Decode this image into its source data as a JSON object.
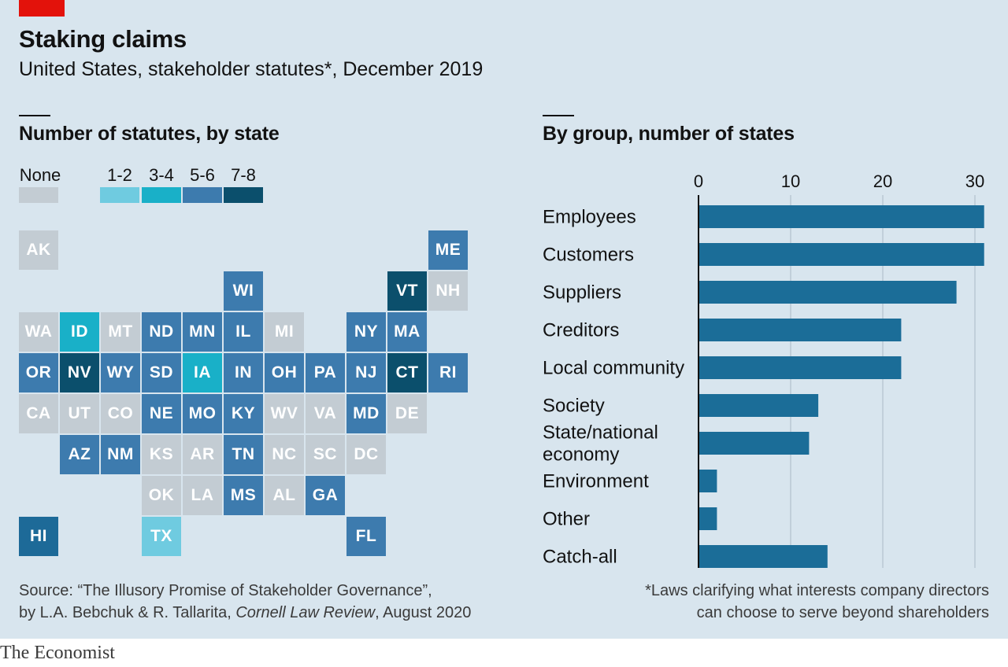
{
  "title": "Staking claims",
  "subtitle": "United States, stakeholder statutes*, December 2019",
  "colors": {
    "none": "#c3ccd3",
    "c12": "#6fcbe0",
    "c34": "#19b0c8",
    "c56": "#3d7bae",
    "c78": "#0b4f6c",
    "hi": "#1d6a98",
    "bar": "#1b6d98"
  },
  "map": {
    "title": "Number of statutes, by state",
    "legend": [
      {
        "key": "none",
        "label": "None"
      },
      {
        "key": "c12",
        "label": "1-2"
      },
      {
        "key": "c34",
        "label": "3-4"
      },
      {
        "key": "c56",
        "label": "5-6"
      },
      {
        "key": "c78",
        "label": "7-8"
      }
    ],
    "tiles": [
      {
        "code": "AK",
        "cat": "none",
        "row": 0,
        "col": 0
      },
      {
        "code": "ME",
        "cat": "c56",
        "row": 0,
        "col": 10
      },
      {
        "code": "WI",
        "cat": "c56",
        "row": 1,
        "col": 5
      },
      {
        "code": "VT",
        "cat": "c78",
        "row": 1,
        "col": 9
      },
      {
        "code": "NH",
        "cat": "none",
        "row": 1,
        "col": 10
      },
      {
        "code": "WA",
        "cat": "none",
        "row": 2,
        "col": 0
      },
      {
        "code": "ID",
        "cat": "c34",
        "row": 2,
        "col": 1
      },
      {
        "code": "MT",
        "cat": "none",
        "row": 2,
        "col": 2
      },
      {
        "code": "ND",
        "cat": "c56",
        "row": 2,
        "col": 3
      },
      {
        "code": "MN",
        "cat": "c56",
        "row": 2,
        "col": 4
      },
      {
        "code": "IL",
        "cat": "c56",
        "row": 2,
        "col": 5
      },
      {
        "code": "MI",
        "cat": "none",
        "row": 2,
        "col": 6
      },
      {
        "code": "NY",
        "cat": "c56",
        "row": 2,
        "col": 8
      },
      {
        "code": "MA",
        "cat": "c56",
        "row": 2,
        "col": 9
      },
      {
        "code": "OR",
        "cat": "c56",
        "row": 3,
        "col": 0
      },
      {
        "code": "NV",
        "cat": "c78",
        "row": 3,
        "col": 1
      },
      {
        "code": "WY",
        "cat": "c56",
        "row": 3,
        "col": 2
      },
      {
        "code": "SD",
        "cat": "c56",
        "row": 3,
        "col": 3
      },
      {
        "code": "IA",
        "cat": "c34",
        "row": 3,
        "col": 4
      },
      {
        "code": "IN",
        "cat": "c56",
        "row": 3,
        "col": 5
      },
      {
        "code": "OH",
        "cat": "c56",
        "row": 3,
        "col": 6
      },
      {
        "code": "PA",
        "cat": "c56",
        "row": 3,
        "col": 7
      },
      {
        "code": "NJ",
        "cat": "c56",
        "row": 3,
        "col": 8
      },
      {
        "code": "CT",
        "cat": "c78",
        "row": 3,
        "col": 9
      },
      {
        "code": "RI",
        "cat": "c56",
        "row": 3,
        "col": 10
      },
      {
        "code": "CA",
        "cat": "none",
        "row": 4,
        "col": 0
      },
      {
        "code": "UT",
        "cat": "none",
        "row": 4,
        "col": 1
      },
      {
        "code": "CO",
        "cat": "none",
        "row": 4,
        "col": 2
      },
      {
        "code": "NE",
        "cat": "c56",
        "row": 4,
        "col": 3
      },
      {
        "code": "MO",
        "cat": "c56",
        "row": 4,
        "col": 4
      },
      {
        "code": "KY",
        "cat": "c56",
        "row": 4,
        "col": 5
      },
      {
        "code": "WV",
        "cat": "none",
        "row": 4,
        "col": 6
      },
      {
        "code": "VA",
        "cat": "none",
        "row": 4,
        "col": 7
      },
      {
        "code": "MD",
        "cat": "c56",
        "row": 4,
        "col": 8
      },
      {
        "code": "DE",
        "cat": "none",
        "row": 4,
        "col": 9
      },
      {
        "code": "AZ",
        "cat": "c56",
        "row": 5,
        "col": 1
      },
      {
        "code": "NM",
        "cat": "c56",
        "row": 5,
        "col": 2
      },
      {
        "code": "KS",
        "cat": "none",
        "row": 5,
        "col": 3
      },
      {
        "code": "AR",
        "cat": "none",
        "row": 5,
        "col": 4
      },
      {
        "code": "TN",
        "cat": "c56",
        "row": 5,
        "col": 5
      },
      {
        "code": "NC",
        "cat": "none",
        "row": 5,
        "col": 6
      },
      {
        "code": "SC",
        "cat": "none",
        "row": 5,
        "col": 7
      },
      {
        "code": "DC",
        "cat": "none",
        "row": 5,
        "col": 8
      },
      {
        "code": "OK",
        "cat": "none",
        "row": 6,
        "col": 3
      },
      {
        "code": "LA",
        "cat": "none",
        "row": 6,
        "col": 4
      },
      {
        "code": "MS",
        "cat": "c56",
        "row": 6,
        "col": 5
      },
      {
        "code": "AL",
        "cat": "none",
        "row": 6,
        "col": 6
      },
      {
        "code": "GA",
        "cat": "c56",
        "row": 6,
        "col": 7
      },
      {
        "code": "HI",
        "cat": "hi",
        "row": 7,
        "col": 0
      },
      {
        "code": "TX",
        "cat": "c12",
        "row": 7,
        "col": 3
      },
      {
        "code": "FL",
        "cat": "c56",
        "row": 7,
        "col": 8
      }
    ]
  },
  "chart_data": {
    "type": "bar",
    "orientation": "horizontal",
    "title": "By group, number of states",
    "categories": [
      "Employees",
      "Customers",
      "Suppliers",
      "Creditors",
      "Local community",
      "Society",
      "State/national economy",
      "Environment",
      "Other",
      "Catch-all"
    ],
    "category_lines": [
      [
        "Employees"
      ],
      [
        "Customers"
      ],
      [
        "Suppliers"
      ],
      [
        "Creditors"
      ],
      [
        "Local community"
      ],
      [
        "Society"
      ],
      [
        "State/national",
        "economy"
      ],
      [
        "Environment"
      ],
      [
        "Other"
      ],
      [
        "Catch-all"
      ]
    ],
    "values": [
      31,
      31,
      28,
      22,
      22,
      13,
      12,
      2,
      2,
      14
    ],
    "xlim": [
      0,
      31
    ],
    "xticks": [
      0,
      10,
      20,
      30
    ],
    "grid": true,
    "axis_position": "top"
  },
  "source": {
    "line1": "Source: “The Illusory Promise of Stakeholder Governance”,",
    "line2_prefix": "by L.A. Bebchuk & R. Tallarita, ",
    "line2_italic": "Cornell Law Review",
    "line2_suffix": ", August 2020"
  },
  "footnote": {
    "line1": "*Laws clarifying what interests company directors",
    "line2": "can choose to serve beyond shareholders"
  },
  "logo": "The Economist"
}
